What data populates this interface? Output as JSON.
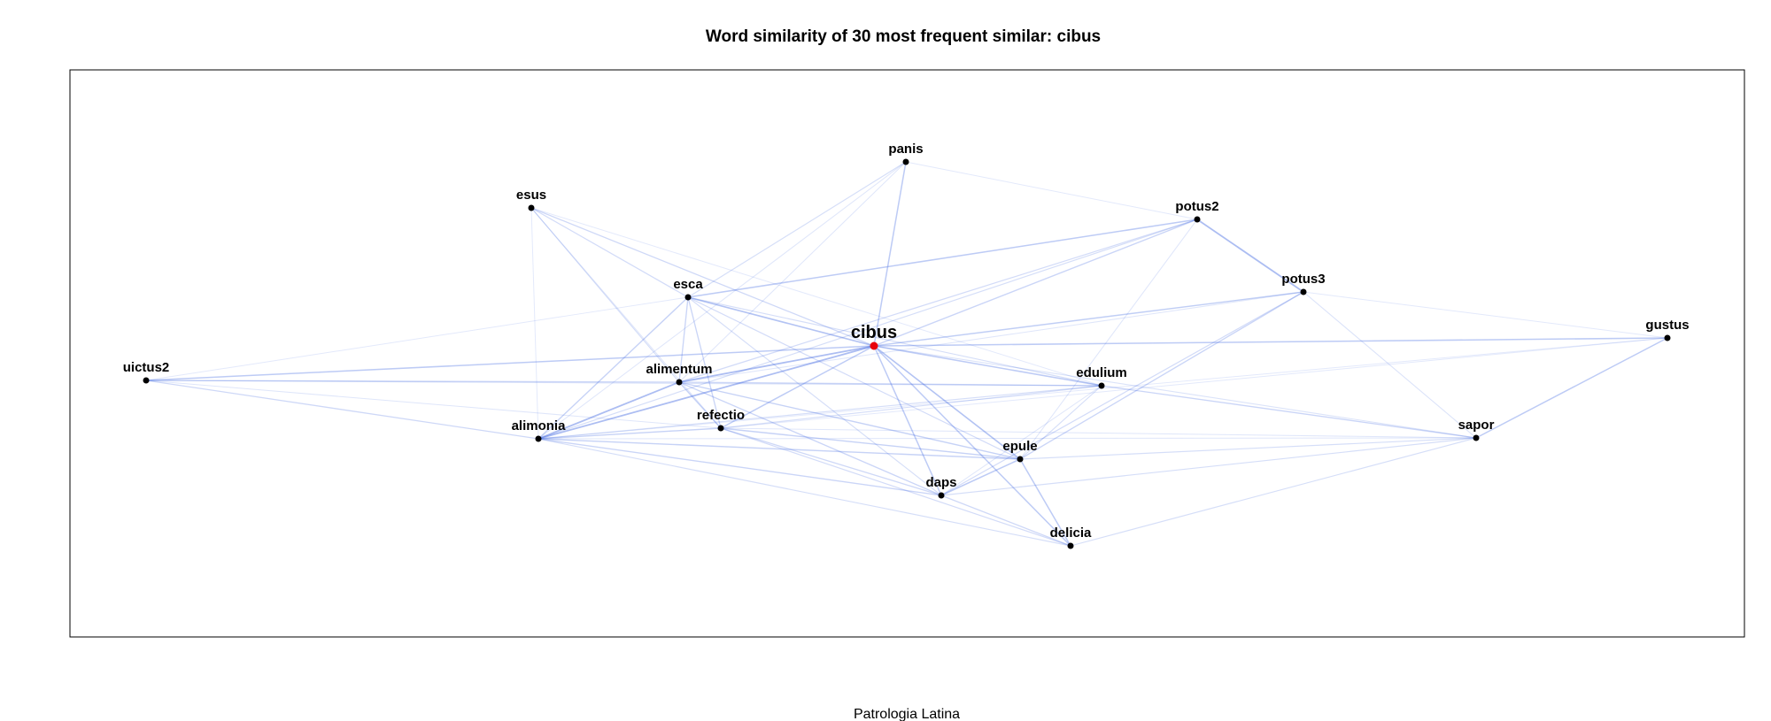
{
  "figure": {
    "title": "Word similarity of 30 most frequent similar:  cibus",
    "caption": "Patrologia Latina"
  },
  "colors": {
    "edge": "#4169e1",
    "node": "#000000",
    "center_node": "#e8000b",
    "frame": "#000000"
  },
  "graph": {
    "center": "cibus",
    "nodes": [
      {
        "id": "cibus",
        "label": "cibus"
      },
      {
        "id": "panis",
        "label": "panis"
      },
      {
        "id": "esus",
        "label": "esus"
      },
      {
        "id": "potus2",
        "label": "potus2"
      },
      {
        "id": "potus3",
        "label": "potus3"
      },
      {
        "id": "esca",
        "label": "esca"
      },
      {
        "id": "gustus",
        "label": "gustus"
      },
      {
        "id": "uictus2",
        "label": "uictus2"
      },
      {
        "id": "alimentum",
        "label": "alimentum"
      },
      {
        "id": "edulium",
        "label": "edulium"
      },
      {
        "id": "alimonia",
        "label": "alimonia"
      },
      {
        "id": "refectio",
        "label": "refectio"
      },
      {
        "id": "sapor",
        "label": "sapor"
      },
      {
        "id": "epule",
        "label": "epule"
      },
      {
        "id": "daps",
        "label": "daps"
      },
      {
        "id": "delicia",
        "label": "delicia"
      }
    ],
    "edges": [
      [
        "cibus",
        "panis",
        0.6
      ],
      [
        "cibus",
        "esus",
        0.4
      ],
      [
        "cibus",
        "potus2",
        0.45
      ],
      [
        "cibus",
        "potus3",
        0.55
      ],
      [
        "cibus",
        "esca",
        0.7
      ],
      [
        "cibus",
        "gustus",
        0.6
      ],
      [
        "cibus",
        "uictus2",
        0.6
      ],
      [
        "cibus",
        "alimentum",
        0.8
      ],
      [
        "cibus",
        "edulium",
        0.6
      ],
      [
        "cibus",
        "alimonia",
        0.8
      ],
      [
        "cibus",
        "refectio",
        0.6
      ],
      [
        "cibus",
        "sapor",
        0.25
      ],
      [
        "cibus",
        "epule",
        0.7
      ],
      [
        "cibus",
        "daps",
        0.6
      ],
      [
        "cibus",
        "delicia",
        0.6
      ],
      [
        "panis",
        "potus2",
        0.15
      ],
      [
        "panis",
        "esca",
        0.3
      ],
      [
        "panis",
        "alimentum",
        0.2
      ],
      [
        "panis",
        "alimonia",
        0.2
      ],
      [
        "esus",
        "esca",
        0.35
      ],
      [
        "esus",
        "alimentum",
        0.3
      ],
      [
        "esus",
        "alimonia",
        0.15
      ],
      [
        "esus",
        "refectio",
        0.2
      ],
      [
        "esus",
        "edulium",
        0.15
      ],
      [
        "potus2",
        "potus3",
        0.8
      ],
      [
        "potus2",
        "esca",
        0.6
      ],
      [
        "potus2",
        "alimentum",
        0.35
      ],
      [
        "potus2",
        "alimonia",
        0.3
      ],
      [
        "potus2",
        "epule",
        0.2
      ],
      [
        "potus3",
        "gustus",
        0.15
      ],
      [
        "potus3",
        "sapor",
        0.25
      ],
      [
        "potus3",
        "epule",
        0.45
      ],
      [
        "potus3",
        "daps",
        0.35
      ],
      [
        "potus3",
        "alimentum",
        0.2
      ],
      [
        "esca",
        "alimentum",
        0.45
      ],
      [
        "esca",
        "alimonia",
        0.5
      ],
      [
        "esca",
        "refectio",
        0.45
      ],
      [
        "esca",
        "edulium",
        0.3
      ],
      [
        "esca",
        "epule",
        0.35
      ],
      [
        "esca",
        "daps",
        0.3
      ],
      [
        "esca",
        "uictus2",
        0.15
      ],
      [
        "gustus",
        "sapor",
        0.6
      ],
      [
        "gustus",
        "alimonia",
        0.15
      ],
      [
        "gustus",
        "refectio",
        0.15
      ],
      [
        "uictus2",
        "alimentum",
        0.45
      ],
      [
        "uictus2",
        "alimonia",
        0.4
      ],
      [
        "uictus2",
        "edulium",
        0.25
      ],
      [
        "uictus2",
        "refectio",
        0.2
      ],
      [
        "alimentum",
        "alimonia",
        0.8
      ],
      [
        "alimentum",
        "refectio",
        0.5
      ],
      [
        "alimentum",
        "edulium",
        0.45
      ],
      [
        "alimentum",
        "epule",
        0.5
      ],
      [
        "alimentum",
        "daps",
        0.45
      ],
      [
        "edulium",
        "alimonia",
        0.3
      ],
      [
        "edulium",
        "refectio",
        0.3
      ],
      [
        "edulium",
        "sapor",
        0.45
      ],
      [
        "edulium",
        "epule",
        0.3
      ],
      [
        "edulium",
        "daps",
        0.2
      ],
      [
        "alimonia",
        "refectio",
        0.5
      ],
      [
        "alimonia",
        "epule",
        0.5
      ],
      [
        "alimonia",
        "daps",
        0.45
      ],
      [
        "alimonia",
        "delicia",
        0.3
      ],
      [
        "alimonia",
        "sapor",
        0.2
      ],
      [
        "refectio",
        "epule",
        0.5
      ],
      [
        "refectio",
        "daps",
        0.4
      ],
      [
        "refectio",
        "delicia",
        0.35
      ],
      [
        "refectio",
        "sapor",
        0.2
      ],
      [
        "sapor",
        "epule",
        0.3
      ],
      [
        "sapor",
        "daps",
        0.3
      ],
      [
        "sapor",
        "delicia",
        0.3
      ],
      [
        "epule",
        "daps",
        0.6
      ],
      [
        "epule",
        "delicia",
        0.6
      ],
      [
        "daps",
        "delicia",
        0.4
      ]
    ]
  }
}
